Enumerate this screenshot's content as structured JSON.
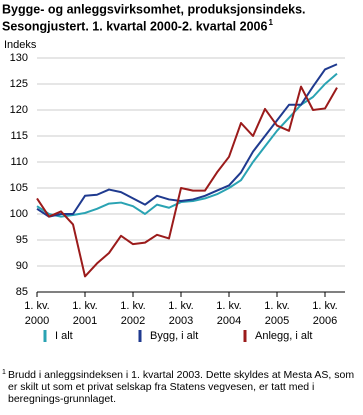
{
  "chart_data": {
    "type": "line",
    "title": "Bygge- og anleggsvirksomhet, produksjonsindeks.",
    "subtitle": "Sesongjustert. 1. kvartal 2000-2. kvartal 2006",
    "subtitle_footnote_marker": "1",
    "y_label": "Indeks",
    "categories": [
      "1. kv. 2000",
      null,
      null,
      null,
      "1. kv. 2001",
      null,
      null,
      null,
      "1. kv. 2002",
      null,
      null,
      null,
      "1. kv. 2003",
      null,
      null,
      null,
      "1. kv. 2004",
      null,
      null,
      null,
      "1. kv. 2005",
      null,
      null,
      null,
      "1. kv. 2006",
      null
    ],
    "series": [
      {
        "name": "I alt",
        "color": "#2aa3b3",
        "values": [
          101.5,
          100,
          99.5,
          99.8,
          100.2,
          101,
          102,
          102.2,
          101.5,
          100,
          101.8,
          101.2,
          102.3,
          102.5,
          103,
          103.8,
          105,
          106.5,
          110,
          113,
          116,
          118.5,
          121,
          122.5,
          125,
          127
        ]
      },
      {
        "name": "Bygg, i alt",
        "color": "#1f3a8f",
        "values": [
          101,
          99.5,
          100,
          100,
          103.5,
          103.7,
          104.7,
          104.2,
          103,
          101.8,
          103.5,
          102.8,
          102.5,
          102.8,
          103.5,
          104.5,
          105.5,
          108,
          112,
          115,
          118,
          121,
          121,
          124.5,
          127.8,
          128.8
        ]
      },
      {
        "name": "Anlegg, i alt",
        "color": "#9b1b1b",
        "values": [
          103,
          99.5,
          100.5,
          98,
          88,
          90.5,
          92.5,
          95.8,
          94.2,
          94.5,
          96,
          95.3,
          105,
          104.5,
          104.5,
          108,
          111,
          117.5,
          115,
          120.2,
          117,
          116,
          124.5,
          120,
          120.3,
          124.3
        ]
      }
    ],
    "ylim": [
      85,
      130
    ],
    "yticks": [
      85,
      90,
      95,
      100,
      105,
      110,
      115,
      120,
      125,
      130
    ],
    "grid": true,
    "legend_position": "bottom",
    "footnote_marker": "1",
    "footnote": "Brudd i anleggsindeksen i 1. kvartal 2003. Dette skyldes at Mesta AS, som er skilt ut som et privat selskap fra Statens vegvesen, er tatt med i beregnings-grunnlaget."
  }
}
